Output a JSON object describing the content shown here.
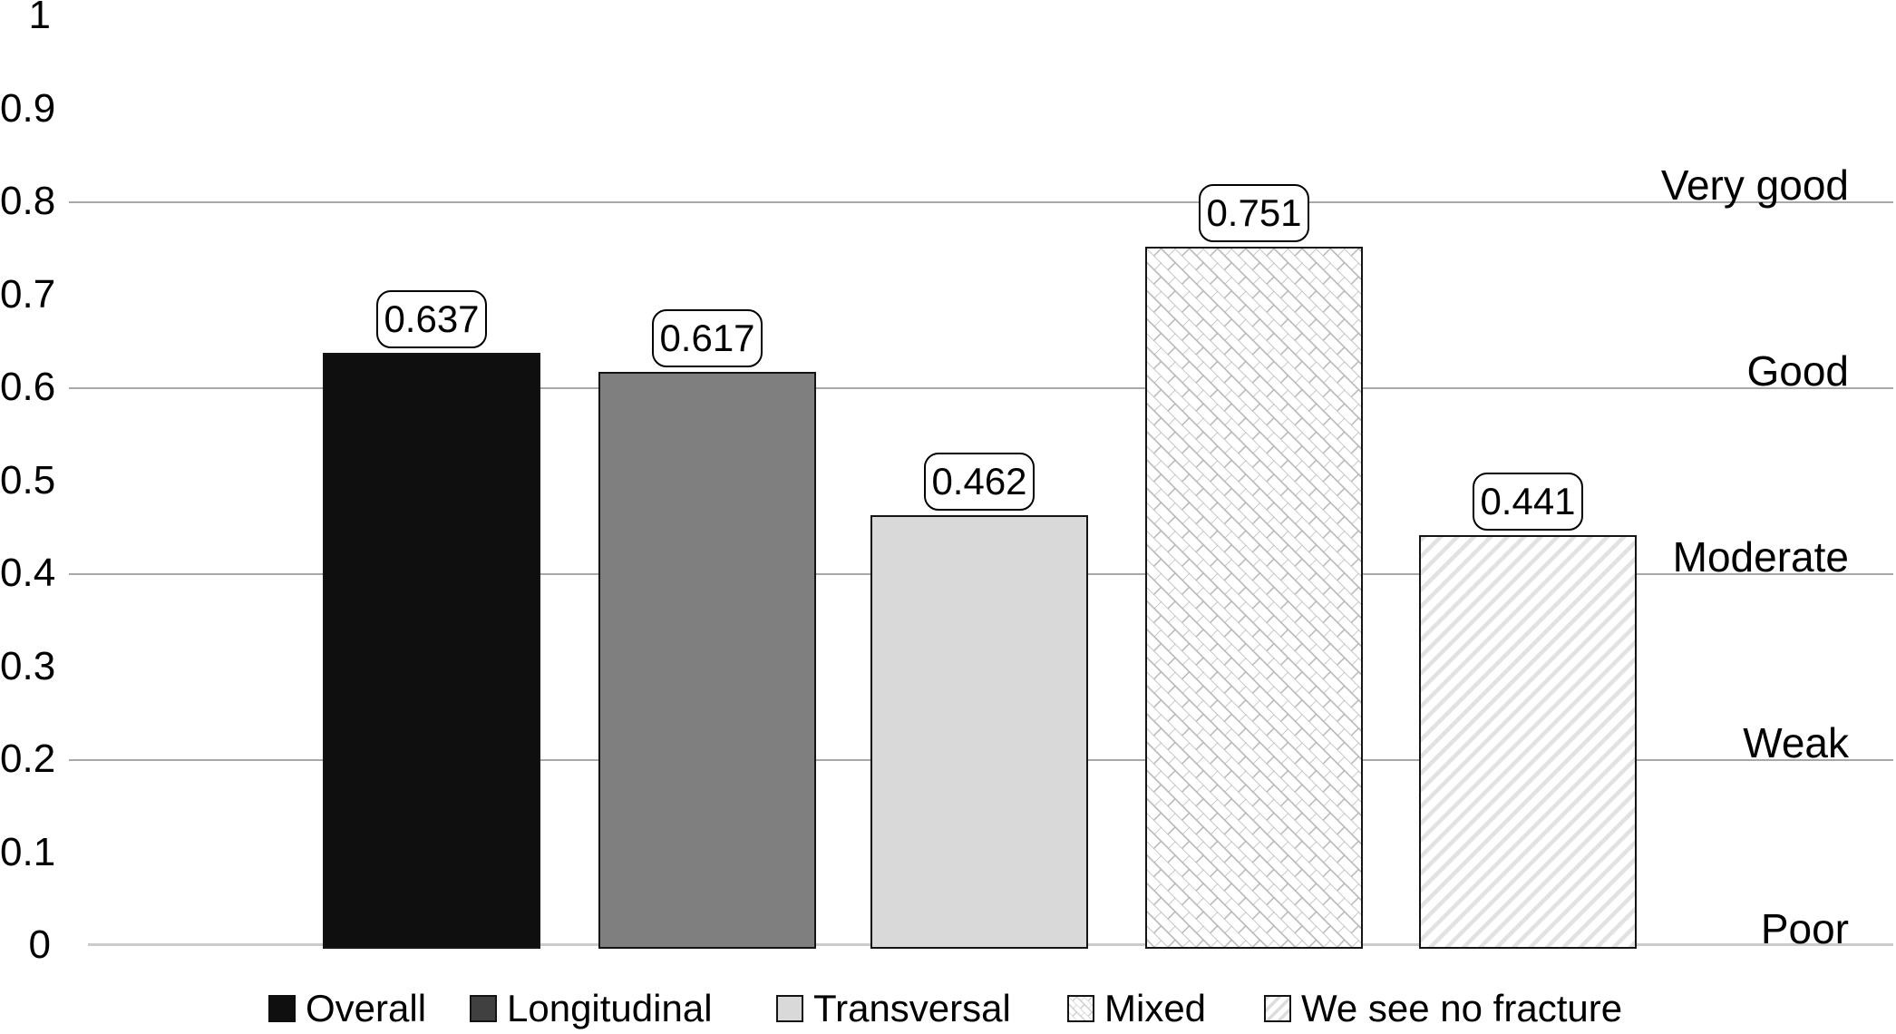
{
  "chart_data": {
    "type": "bar",
    "title": "",
    "categories": [
      "Overall",
      "Longitudinal",
      "Transversal",
      "Mixed",
      "We see no fracture"
    ],
    "values": [
      0.637,
      0.617,
      0.462,
      0.751,
      0.441
    ],
    "value_labels": [
      "0.637",
      "0.617",
      "0.462",
      "0.751",
      "0.441"
    ],
    "ylim": [
      0,
      1
    ],
    "yticks": [
      "1",
      "0.9",
      "0.8",
      "0.7",
      "0.6",
      "0.5",
      "0.4",
      "0.3",
      "0.2",
      "0.1",
      "0"
    ],
    "ytick_values": [
      1,
      0.9,
      0.8,
      0.7,
      0.6,
      0.5,
      0.4,
      0.3,
      0.2,
      0.1,
      0
    ],
    "gridline_values": [
      0.8,
      0.6,
      0.4,
      0.2
    ],
    "grid": "horizontal",
    "legend_position": "bottom",
    "right_axis_labels": [
      {
        "text": "Very good",
        "at": 0.8
      },
      {
        "text": "Good",
        "at": 0.6
      },
      {
        "text": "Moderate",
        "at": 0.4
      },
      {
        "text": "Weak",
        "at": 0.2
      },
      {
        "text": "Poor",
        "at": 0
      }
    ],
    "bar_fills": [
      {
        "type": "solid",
        "color": "#0f0f0f"
      },
      {
        "type": "solid",
        "color": "#7f7f7f"
      },
      {
        "type": "solid",
        "color": "#d9d9d9"
      },
      {
        "type": "pattern",
        "pattern": "diagonal-brick",
        "color": "#b3b3b3"
      },
      {
        "type": "pattern",
        "pattern": "diagonal-stripe",
        "color": "#e2e2e2"
      }
    ],
    "colors": {
      "gridline": "#a8a8a8",
      "baseline": "#cbcbcb",
      "callout_border": "#000000",
      "text": "#000000"
    }
  }
}
